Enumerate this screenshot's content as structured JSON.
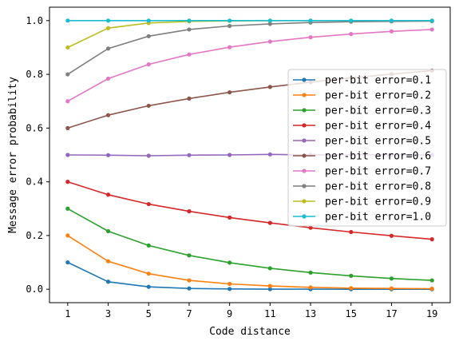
{
  "chart_data": {
    "type": "line",
    "xlabel": "Code distance",
    "ylabel": "Message error probability",
    "x": [
      1,
      3,
      5,
      7,
      9,
      11,
      13,
      15,
      17,
      19
    ],
    "xlim": [
      0.1,
      19.9
    ],
    "ylim": [
      -0.05,
      1.05
    ],
    "xticks": [
      "1",
      "3",
      "5",
      "7",
      "9",
      "11",
      "13",
      "15",
      "17",
      "19"
    ],
    "yticks": [
      "0.0",
      "0.2",
      "0.4",
      "0.6",
      "0.8",
      "1.0"
    ],
    "grid": false,
    "legend_position": "center-right",
    "series": [
      {
        "name": "per-bit error=0.1",
        "color": "#1f77b4",
        "values": [
          0.1,
          0.028,
          0.009,
          0.003,
          0.001,
          0.0003,
          0.0001,
          0.0,
          0.0,
          0.0
        ]
      },
      {
        "name": "per-bit error=0.2",
        "color": "#ff7f0e",
        "values": [
          0.2,
          0.104,
          0.058,
          0.033,
          0.02,
          0.012,
          0.007,
          0.004,
          0.003,
          0.002
        ]
      },
      {
        "name": "per-bit error=0.3",
        "color": "#2ca02c",
        "values": [
          0.3,
          0.216,
          0.163,
          0.126,
          0.099,
          0.078,
          0.062,
          0.05,
          0.04,
          0.033
        ]
      },
      {
        "name": "per-bit error=0.4",
        "color": "#d62728",
        "values": [
          0.4,
          0.352,
          0.317,
          0.29,
          0.267,
          0.247,
          0.229,
          0.213,
          0.199,
          0.186
        ]
      },
      {
        "name": "per-bit error=0.5",
        "color": "#9467bd",
        "values": [
          0.5,
          0.499,
          0.497,
          0.499,
          0.5,
          0.502,
          0.5,
          0.501,
          0.5,
          0.5
        ]
      },
      {
        "name": "per-bit error=0.6",
        "color": "#8c564b",
        "values": [
          0.6,
          0.648,
          0.683,
          0.71,
          0.733,
          0.753,
          0.771,
          0.787,
          0.801,
          0.814
        ]
      },
      {
        "name": "per-bit error=0.7",
        "color": "#e377c2",
        "values": [
          0.7,
          0.784,
          0.837,
          0.874,
          0.901,
          0.922,
          0.938,
          0.95,
          0.96,
          0.967
        ]
      },
      {
        "name": "per-bit error=0.8",
        "color": "#7f7f7f",
        "values": [
          0.8,
          0.896,
          0.942,
          0.967,
          0.98,
          0.988,
          0.993,
          0.996,
          0.997,
          0.998
        ]
      },
      {
        "name": "per-bit error=0.9",
        "color": "#bcbd22",
        "values": [
          0.9,
          0.972,
          0.991,
          0.997,
          0.999,
          1.0,
          1.0,
          1.0,
          1.0,
          1.0
        ]
      },
      {
        "name": "per-bit error=1.0",
        "color": "#17becf",
        "values": [
          1.0,
          1.0,
          1.0,
          1.0,
          1.0,
          1.0,
          1.0,
          1.0,
          1.0,
          1.0
        ]
      }
    ]
  }
}
